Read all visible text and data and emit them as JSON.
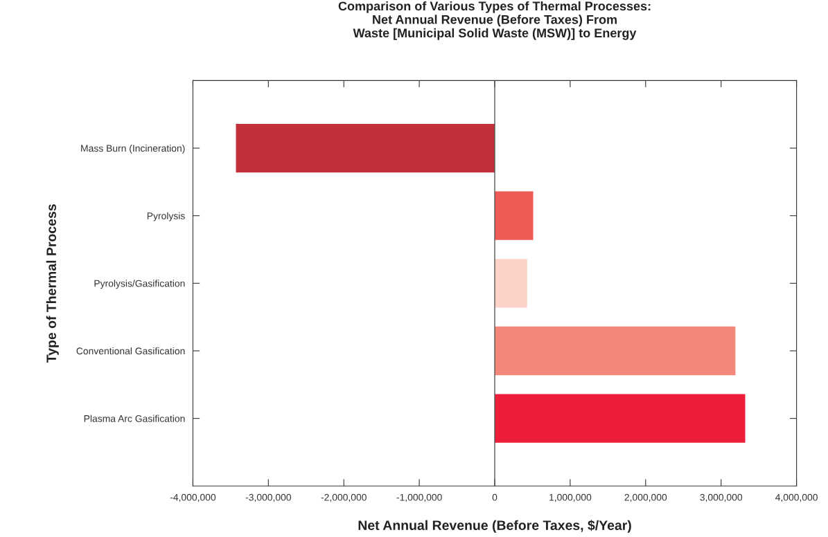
{
  "chart_data": {
    "type": "bar",
    "orientation": "horizontal",
    "title": "Comparison of Various Types of Thermal Processes:\nNet Annual Revenue (Before Taxes) From\nWaste [Municipal Solid Waste (MSW)] to Energy",
    "xlabel": "Net Annual Revenue (Before Taxes, $/Year)",
    "ylabel": "Type of Thermal Process",
    "categories": [
      "Mass Burn (Incineration)",
      "Pyrolysis",
      "Pyrolysis/Gasification",
      "Conventional Gasification",
      "Plasma Arc Gasification"
    ],
    "values": [
      -3430000,
      510000,
      430000,
      3190000,
      3320000
    ],
    "colors": [
      "#c4303a",
      "#ee5a55",
      "#fbd3c8",
      "#f3877a",
      "#ec1e3a"
    ],
    "xlim": [
      -4000000,
      4000000
    ],
    "xticks": [
      {
        "value": -4000000,
        "label": "-4,000,000"
      },
      {
        "value": -3000000,
        "label": "-3,000,000"
      },
      {
        "value": -2000000,
        "label": "-2,000,000"
      },
      {
        "value": -1000000,
        "label": "-1,000,000"
      },
      0,
      {
        "value": 1000000,
        "label": "1,000,000"
      },
      {
        "value": 2000000,
        "label": "2,000,000"
      },
      {
        "value": 3000000,
        "label": "3,000,000"
      },
      {
        "value": 4000000,
        "label": "4,000,000"
      }
    ],
    "ref_lines": [
      {
        "axis": "x",
        "value": 0,
        "color": "#555555"
      }
    ],
    "grid": false,
    "legend": false
  }
}
